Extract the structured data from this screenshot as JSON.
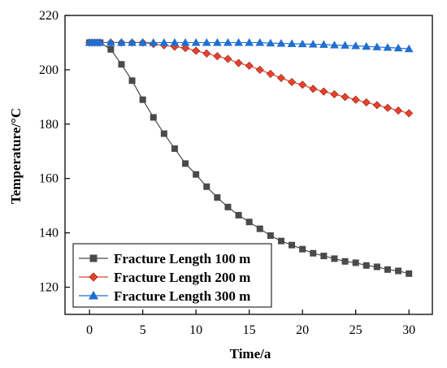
{
  "chart_data": {
    "type": "line",
    "xlabel": "Time/a",
    "ylabel": "Temperature/°C",
    "xlim": [
      -2.3,
      32.2
    ],
    "ylim": [
      110,
      220
    ],
    "xticks": [
      0,
      5,
      10,
      15,
      20,
      25,
      30
    ],
    "yticks": [
      120,
      140,
      160,
      180,
      200,
      220
    ],
    "grid": false,
    "legend_position": "bottom-left",
    "series": [
      {
        "name": "Fracture Length 100 m",
        "marker": "square",
        "color": "#4a4a4a",
        "x": [
          0,
          0.25,
          0.5,
          0.75,
          1,
          2,
          3,
          4,
          5,
          6,
          7,
          8,
          9,
          10,
          11,
          12,
          13,
          14,
          15,
          16,
          17,
          18,
          19,
          20,
          21,
          22,
          23,
          24,
          25,
          26,
          27,
          28,
          29,
          30
        ],
        "y": [
          210,
          210,
          210,
          210,
          210,
          207.5,
          202,
          196,
          189,
          182.5,
          176.5,
          171,
          165.5,
          161.5,
          157,
          153,
          149.5,
          146.5,
          144,
          141.5,
          139,
          137,
          135.5,
          134,
          132.5,
          131.5,
          130.5,
          129.5,
          129,
          128,
          127.5,
          126.5,
          126,
          125
        ]
      },
      {
        "name": "Fracture Length 200 m",
        "marker": "diamond",
        "color": "#e8412c",
        "x": [
          0,
          0.25,
          0.5,
          0.75,
          1,
          2,
          3,
          4,
          5,
          6,
          7,
          8,
          9,
          10,
          11,
          12,
          13,
          14,
          15,
          16,
          17,
          18,
          19,
          20,
          21,
          22,
          23,
          24,
          25,
          26,
          27,
          28,
          29,
          30
        ],
        "y": [
          210,
          210,
          210,
          210,
          210,
          210,
          210,
          210,
          210,
          209.5,
          209,
          208.5,
          208,
          207,
          206,
          205,
          204,
          202.5,
          201.5,
          200,
          198.5,
          197,
          195.5,
          194.5,
          193,
          192,
          191,
          190,
          189,
          188,
          187,
          186,
          185,
          184
        ]
      },
      {
        "name": "Fracture Length 300 m",
        "marker": "triangle",
        "color": "#1f6fd1",
        "x": [
          0,
          0.25,
          0.5,
          0.75,
          1,
          2,
          3,
          4,
          5,
          6,
          7,
          8,
          9,
          10,
          11,
          12,
          13,
          14,
          15,
          16,
          17,
          18,
          19,
          20,
          21,
          22,
          23,
          24,
          25,
          26,
          27,
          28,
          29,
          30
        ],
        "y": [
          210,
          210,
          210,
          210,
          210,
          210,
          210,
          210,
          210,
          210,
          210,
          210,
          210,
          210,
          210,
          210,
          210,
          210,
          210,
          210,
          209.8,
          209.7,
          209.6,
          209.5,
          209.4,
          209.3,
          209.1,
          209,
          208.8,
          208.6,
          208.4,
          208.2,
          208,
          207.7
        ]
      }
    ]
  }
}
